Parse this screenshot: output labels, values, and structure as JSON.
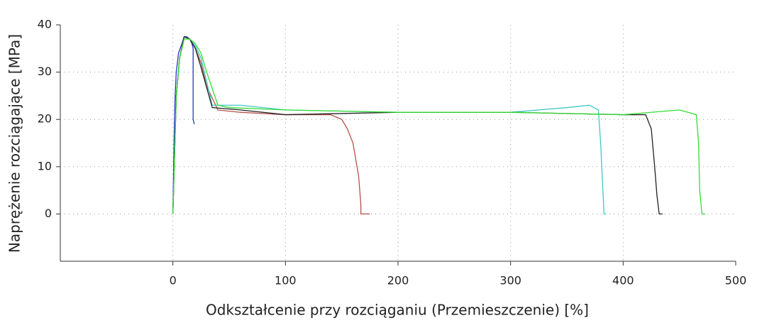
{
  "chart_data": {
    "type": "line",
    "xlabel": "Odkształcenie przy rozciąganiu (Przemieszczenie) [%]",
    "ylabel": "Naprężenie rozciągające [MPa]",
    "xlim": [
      -100,
      500
    ],
    "ylim": [
      -10,
      40
    ],
    "xticks": [
      0,
      100,
      200,
      300,
      400,
      500
    ],
    "yticks": [
      0,
      10,
      20,
      30,
      40
    ],
    "grid": true,
    "series": [
      {
        "color": "#2a35cc",
        "x": [
          0,
          1,
          2,
          3,
          5,
          8,
          10,
          12,
          15,
          17,
          18,
          18,
          19
        ],
        "values": [
          0,
          15,
          25,
          30,
          34,
          36,
          37.5,
          37.5,
          37,
          36,
          35,
          20,
          19
        ]
      },
      {
        "color": "#b5524a",
        "x": [
          0,
          3,
          6,
          10,
          15,
          20,
          25,
          30,
          40,
          60,
          100,
          140,
          150,
          155,
          160,
          165,
          167,
          167,
          175
        ],
        "values": [
          0,
          25,
          33,
          37,
          37,
          35,
          32,
          27,
          22,
          21.5,
          21,
          21,
          20,
          18,
          15,
          8,
          2,
          0,
          0
        ]
      },
      {
        "color": "#40c8c8",
        "x": [
          0,
          3,
          6,
          10,
          15,
          20,
          25,
          35,
          60,
          100,
          200,
          300,
          350,
          370,
          378,
          380,
          382,
          383,
          385
        ],
        "values": [
          0,
          25,
          33,
          37.5,
          37,
          35.5,
          33,
          23,
          23,
          22,
          21.5,
          21.5,
          22.5,
          23,
          22,
          15,
          5,
          0,
          0
        ]
      },
      {
        "color": "#222222",
        "x": [
          0,
          3,
          6,
          10,
          15,
          20,
          25,
          35,
          60,
          100,
          200,
          300,
          400,
          420,
          425,
          428,
          430,
          432,
          435
        ],
        "values": [
          0,
          25,
          33,
          37.5,
          37,
          35,
          31,
          22.5,
          22,
          21,
          21.5,
          21.5,
          21,
          21,
          18,
          10,
          4,
          0,
          0
        ]
      },
      {
        "color": "#33dd33",
        "x": [
          0,
          3,
          6,
          10,
          15,
          20,
          25,
          30,
          40,
          50,
          100,
          200,
          300,
          400,
          450,
          465,
          467,
          468,
          470,
          473
        ],
        "values": [
          0,
          25,
          33,
          37,
          37,
          36,
          34,
          30,
          23,
          22.5,
          22,
          21.5,
          21.5,
          21,
          22,
          21,
          15,
          5,
          0,
          0
        ]
      }
    ]
  }
}
